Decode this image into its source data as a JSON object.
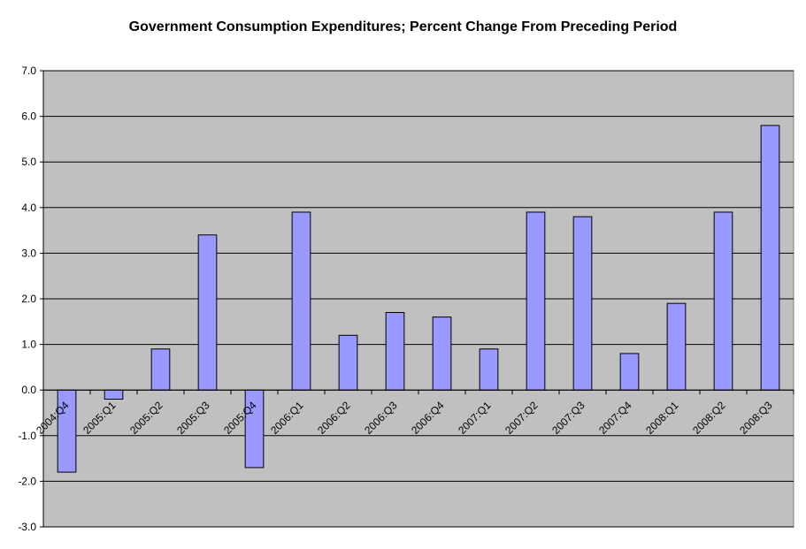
{
  "chart_data": {
    "type": "bar",
    "title": "Government Consumption Expenditures; Percent Change From Preceding Period",
    "xlabel": "",
    "ylabel": "",
    "categories": [
      "2004:Q4",
      "2005:Q1",
      "2005:Q2",
      "2005:Q3",
      "2005:Q4",
      "2006:Q1",
      "2006:Q2",
      "2006:Q3",
      "2006:Q4",
      "2007:Q1",
      "2007:Q2",
      "2007:Q3",
      "2007:Q4",
      "2008:Q1",
      "2008:Q2",
      "2008:Q3"
    ],
    "values": [
      -1.8,
      -0.2,
      0.9,
      3.4,
      -1.7,
      3.9,
      1.2,
      1.7,
      1.6,
      0.9,
      3.9,
      3.8,
      0.8,
      1.9,
      3.9,
      5.8
    ],
    "ylim": [
      -3.0,
      7.0
    ],
    "yticks": [
      "-3.0",
      "-2.0",
      "-1.0",
      "0.0",
      "1.0",
      "2.0",
      "3.0",
      "4.0",
      "5.0",
      "6.0",
      "7.0"
    ],
    "grid": true,
    "legend": "none",
    "colors": {
      "bar_fill": "#9999ff",
      "bar_stroke": "#000000",
      "plot_background": "#c0c0c0",
      "gridline": "#000000"
    }
  }
}
